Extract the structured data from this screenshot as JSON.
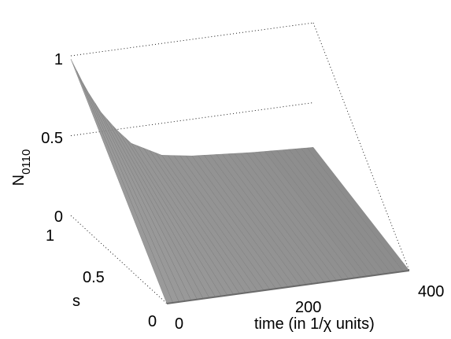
{
  "chart_data": {
    "type": "surface",
    "z_axis": {
      "label": "N",
      "label_subscript": "0110",
      "ticks": [
        "0",
        "0.5",
        "1"
      ],
      "range": [
        0,
        1
      ]
    },
    "s_axis": {
      "label": "s",
      "ticks": [
        "0",
        "0.5",
        "1"
      ],
      "range": [
        0,
        1
      ]
    },
    "time_axis": {
      "label": "time (in 1/χ units)",
      "ticks": [
        "0",
        "200",
        "400"
      ],
      "range": [
        0,
        400
      ]
    },
    "surface": {
      "color": "#8c8c8c",
      "grid": "dotted",
      "profile_at_s1": {
        "time": [
          0,
          25,
          50,
          75,
          100,
          150,
          200,
          300,
          400
        ],
        "value": [
          0.98,
          0.78,
          0.62,
          0.5,
          0.4,
          0.3,
          0.27,
          0.24,
          0.22
        ]
      },
      "value_at_s0": 0
    }
  }
}
